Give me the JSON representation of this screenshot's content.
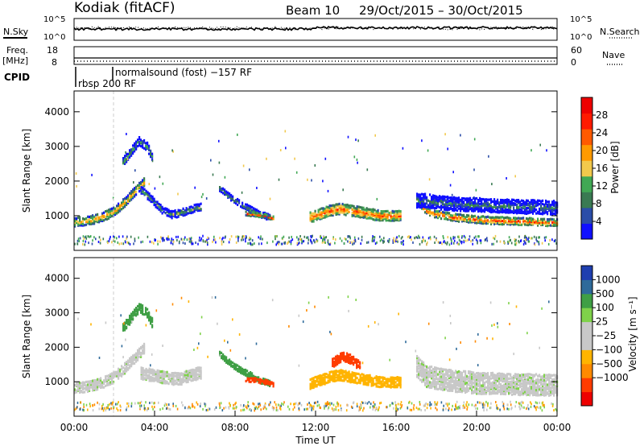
{
  "header": {
    "radar": "Kodiak (fitACF)",
    "beam": "Beam 10",
    "date_range": "29/Oct/2015 – 30/Oct/2015"
  },
  "left_labels": {
    "nsky": "N.Sky",
    "freq": "Freq.",
    "freq_unit": "[MHz]",
    "cpid": "CPID"
  },
  "right_labels": {
    "nsearch": "N.Search",
    "nave": "Nave"
  },
  "noise_panel": {
    "left_ticks": [
      "10^5",
      "10^0"
    ],
    "right_ticks": [
      "10^5",
      "10^0"
    ]
  },
  "freq_panel": {
    "left_ticks": [
      "18",
      "8"
    ],
    "right_ticks": [
      "60",
      "0"
    ]
  },
  "cpid": {
    "mode1": "rbsp 200 RF",
    "mode2": "normalsound (fost) −157 RF"
  },
  "colors": {
    "power_scale": [
      "#1010ff",
      "#2b4da8",
      "#3a7a52",
      "#41a854",
      "#f2c94c",
      "#ff9a00",
      "#ff5a00",
      "#ff1a00",
      "#ee0000"
    ],
    "velocity_scale": [
      "#ee0000",
      "#ff3c00",
      "#ff8a00",
      "#ffb400",
      "#c8c8c8",
      "#c8c8c8",
      "#7fd24a",
      "#3f9f45",
      "#2e6a9a",
      "#1f3fb0"
    ]
  },
  "chart_data": [
    {
      "type": "heatmap",
      "name": "power",
      "title": "",
      "xlabel": "",
      "ylabel": "Slant Range [km]",
      "xlim": [
        0,
        24
      ],
      "ylim": [
        0,
        4600
      ],
      "x_ticks": [
        0,
        4,
        8,
        12,
        16,
        20,
        24
      ],
      "y_ticks": [
        1000,
        2000,
        3000,
        4000
      ],
      "y_tick_labels": [
        "1000",
        "2000",
        "3000",
        "4000"
      ],
      "colorbar": {
        "label": "Power [dB]",
        "range": [
          0,
          32
        ],
        "ticks": [
          4,
          8,
          12,
          16,
          20,
          24,
          28
        ]
      },
      "features": [
        {
          "t": [
            0.0,
            0.5,
            1.0,
            1.5,
            2.0,
            2.5,
            3.0,
            3.5
          ],
          "range_km": [
            870,
            900,
            950,
            1050,
            1200,
            1450,
            1750,
            2050
          ],
          "width_km": 260,
          "power_db": 24
        },
        {
          "t": [
            3.3,
            3.8,
            4.3,
            4.8,
            5.3,
            5.8,
            6.3
          ],
          "range_km": [
            1800,
            1550,
            1250,
            1100,
            1150,
            1250,
            1320
          ],
          "width_km": 240,
          "power_db": 14
        },
        {
          "t": [
            7.2,
            7.7,
            8.2,
            8.7,
            9.2,
            9.7
          ],
          "range_km": [
            1850,
            1600,
            1400,
            1250,
            1100,
            1000
          ],
          "width_km": 170,
          "power_db": 14
        },
        {
          "t": [
            8.5,
            9.0,
            9.5,
            9.9
          ],
          "range_km": [
            1120,
            1100,
            1050,
            980
          ],
          "width_km": 140,
          "power_db": 26
        },
        {
          "t": [
            11.7,
            12.2,
            12.7,
            13.2,
            13.7,
            14.2,
            14.7,
            15.2,
            15.7,
            16.2
          ],
          "range_km": [
            1000,
            1100,
            1200,
            1250,
            1200,
            1150,
            1100,
            1050,
            1050,
            1050
          ],
          "width_km": 300,
          "power_db": 28
        },
        {
          "t": [
            17.0,
            17.5,
            18.0,
            18.5,
            19.0,
            19.5,
            20.0,
            20.5,
            21.0,
            21.5,
            22.0,
            22.5,
            23.0,
            23.5,
            24.0
          ],
          "range_km": [
            1500,
            1200,
            1100,
            1050,
            1000,
            980,
            950,
            930,
            920,
            910,
            900,
            890,
            880,
            870,
            860
          ],
          "width_km": 230,
          "power_db": 28
        },
        {
          "t": [
            17.0,
            17.5,
            18.0,
            18.5,
            19.0,
            19.5,
            20.0,
            20.5,
            21.0,
            21.5,
            22.0,
            22.5,
            23.0,
            23.5,
            24.0
          ],
          "range_km": [
            1500,
            1500,
            1450,
            1420,
            1400,
            1380,
            1380,
            1360,
            1350,
            1340,
            1330,
            1320,
            1320,
            1300,
            1300
          ],
          "width_km": 420,
          "power_db": 10
        },
        {
          "t": [
            2.4,
            2.8,
            3.2,
            3.6,
            3.9
          ],
          "range_km": [
            2600,
            2900,
            3200,
            3050,
            2700
          ],
          "width_km": 260,
          "power_db": 16
        }
      ]
    },
    {
      "type": "heatmap",
      "name": "velocity",
      "title": "",
      "xlabel": "Time UT",
      "ylabel": "Slant Range [km]",
      "xlim": [
        0,
        24
      ],
      "ylim": [
        0,
        4600
      ],
      "x_ticks": [
        0,
        4,
        8,
        12,
        16,
        20,
        24
      ],
      "x_tick_labels": [
        "00:00",
        "04:00",
        "08:00",
        "12:00",
        "16:00",
        "20:00",
        "00:00"
      ],
      "y_ticks": [
        1000,
        2000,
        3000,
        4000
      ],
      "y_tick_labels": [
        "1000",
        "2000",
        "3000",
        "4000"
      ],
      "colorbar": {
        "label": "Velocity [m s⁻¹]",
        "ticks": [
          1000,
          500,
          100,
          25,
          -25,
          -100,
          -500,
          -1000
        ],
        "tick_labels": [
          "1000",
          "500",
          "100",
          "25",
          "−25",
          "−100",
          "−500",
          "−1000"
        ]
      },
      "features": [
        {
          "t": [
            0.0,
            0.5,
            1.0,
            1.5,
            2.0,
            2.5,
            3.0,
            3.5
          ],
          "range_km": [
            870,
            900,
            950,
            1050,
            1200,
            1450,
            1750,
            2050
          ],
          "width_km": 300,
          "velocity": 0
        },
        {
          "t": [
            3.3,
            3.8,
            4.3,
            4.8,
            5.3,
            5.8,
            6.3
          ],
          "range_km": [
            1300,
            1250,
            1200,
            1150,
            1150,
            1250,
            1320
          ],
          "width_km": 360,
          "velocity": 0
        },
        {
          "t": [
            7.2,
            7.7,
            8.2,
            8.7,
            9.2,
            9.7
          ],
          "range_km": [
            1850,
            1600,
            1400,
            1250,
            1100,
            1000
          ],
          "width_km": 170,
          "velocity": 150
        },
        {
          "t": [
            8.5,
            9.0,
            9.5,
            9.9
          ],
          "range_km": [
            1120,
            1100,
            1050,
            980
          ],
          "width_km": 140,
          "velocity": -300
        },
        {
          "t": [
            11.7,
            12.2,
            12.7,
            13.2,
            13.7,
            14.2,
            14.7,
            15.2,
            15.7,
            16.2
          ],
          "range_km": [
            1000,
            1100,
            1200,
            1250,
            1200,
            1150,
            1100,
            1050,
            1050,
            1050
          ],
          "width_km": 320,
          "velocity": -180
        },
        {
          "t": [
            12.8,
            13.3,
            13.8,
            14.2
          ],
          "range_km": [
            1600,
            1800,
            1700,
            1500
          ],
          "width_km": 280,
          "velocity": -400
        },
        {
          "t": [
            17.0,
            17.5,
            18.0,
            18.5,
            19.0,
            19.5,
            20.0,
            20.5,
            21.0,
            21.5,
            22.0,
            22.5,
            23.0,
            23.5,
            24.0
          ],
          "range_km": [
            1500,
            1200,
            1150,
            1100,
            1050,
            1050,
            1000,
            1000,
            1000,
            980,
            980,
            970,
            960,
            950,
            950
          ],
          "width_km": 620,
          "velocity": 0
        },
        {
          "t": [
            2.4,
            2.8,
            3.2,
            3.6,
            3.9
          ],
          "range_km": [
            2600,
            2900,
            3200,
            3050,
            2700
          ],
          "width_km": 260,
          "velocity": 150
        }
      ]
    }
  ]
}
